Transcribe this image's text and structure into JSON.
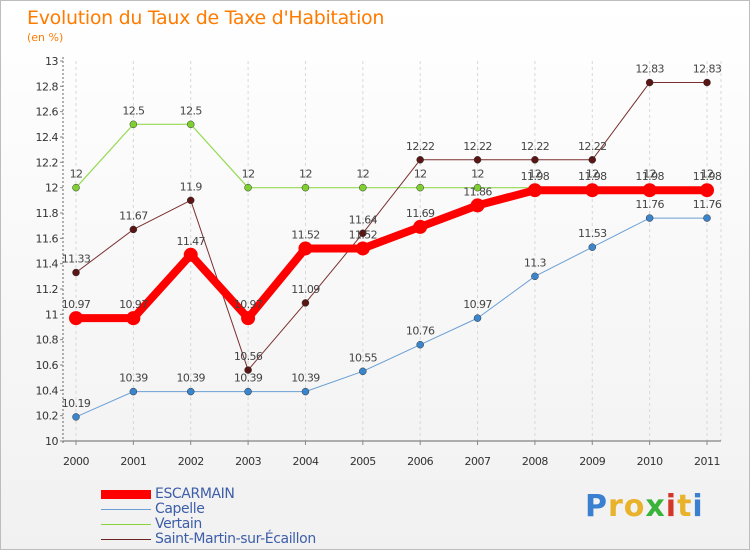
{
  "header": {
    "title": "Evolution du Taux de Taxe d'Habitation",
    "subtitle": "(en %)"
  },
  "chart_data": {
    "type": "line",
    "title": "Evolution du Taux de Taxe d'Habitation",
    "subtitle": "(en %)",
    "xlabel": "",
    "ylabel": "(en %)",
    "categories": [
      "2000",
      "2001",
      "2002",
      "2003",
      "2004",
      "2005",
      "2006",
      "2007",
      "2008",
      "2009",
      "2010",
      "2011"
    ],
    "ylim": [
      10,
      13
    ],
    "yticks": [
      10,
      10.2,
      10.4,
      10.6,
      10.8,
      11,
      11.2,
      11.4,
      11.6,
      11.8,
      12,
      12.2,
      12.4,
      12.6,
      12.8,
      13
    ],
    "ytick_labels": [
      "10",
      "10.2",
      "10.4",
      "10.6",
      "10.8",
      "11",
      "11.2",
      "11.4",
      "11.6",
      "11.8",
      "12",
      "12.2",
      "12.4",
      "12.6",
      "12.8",
      "13"
    ],
    "grid": "vertical dashed",
    "legend_position": "bottom-left",
    "series": [
      {
        "name": "ESCARMAIN",
        "color": "#ff0000",
        "values": [
          10.97,
          10.97,
          11.47,
          10.97,
          11.52,
          11.52,
          11.69,
          11.86,
          11.98,
          11.98,
          11.98,
          11.98
        ],
        "labels": [
          "10.97",
          "10.97",
          "11.47",
          "10.97",
          "11.52",
          "11.52",
          "11.69",
          "11.86",
          "11.98",
          "11.98",
          "11.98",
          "11.98"
        ]
      },
      {
        "name": "Capelle",
        "color": "#4f8fd0",
        "values": [
          10.19,
          10.39,
          10.39,
          10.39,
          10.39,
          10.55,
          10.76,
          10.97,
          11.3,
          11.53,
          11.76,
          11.76
        ],
        "labels": [
          "10.19",
          "10.39",
          "10.39",
          "10.39",
          "10.39",
          "10.55",
          "10.76",
          "10.97",
          "11.3",
          "11.53",
          "11.76",
          "11.76"
        ]
      },
      {
        "name": "Vertain",
        "color": "#86d33c",
        "values": [
          12,
          12.5,
          12.5,
          12,
          12,
          12,
          12,
          12,
          12,
          12,
          12,
          12
        ],
        "labels": [
          "12",
          "12.5",
          "12.5",
          "12",
          "12",
          "12",
          "12",
          "12",
          "12",
          "12",
          "12",
          "12"
        ]
      },
      {
        "name": "Saint-Martin-sur-Écaillon",
        "color": "#6b2424",
        "values": [
          11.33,
          11.67,
          11.9,
          10.56,
          11.09,
          11.64,
          12.22,
          12.22,
          12.22,
          12.22,
          12.83,
          12.83
        ],
        "labels": [
          "11.33",
          "11.67",
          "11.9",
          "10.56",
          "11.09",
          "11.64",
          "12.22",
          "12.22",
          "12.22",
          "12.22",
          "12.83",
          "12.83"
        ]
      }
    ]
  },
  "legend": {
    "items": [
      {
        "label": "ESCARMAIN",
        "color": "#ff0000"
      },
      {
        "label": "Capelle",
        "color": "#6a9fd4"
      },
      {
        "label": "Vertain",
        "color": "#86d33c"
      },
      {
        "label": "Saint-Martin-sur-Écaillon",
        "color": "#6b2424"
      }
    ]
  },
  "logo": {
    "text": "Proxiti",
    "letters": [
      {
        "char": "P",
        "color": "#3a7fd0"
      },
      {
        "char": "r",
        "color": "#e8b32a"
      },
      {
        "char": "o",
        "color": "#e8b32a"
      },
      {
        "char": "x",
        "color": "#3ab33a"
      },
      {
        "char": "i",
        "color": "#d4372a"
      },
      {
        "char": "t",
        "color": "#e8b32a"
      },
      {
        "char": "i",
        "color": "#3a7fd0"
      }
    ]
  }
}
